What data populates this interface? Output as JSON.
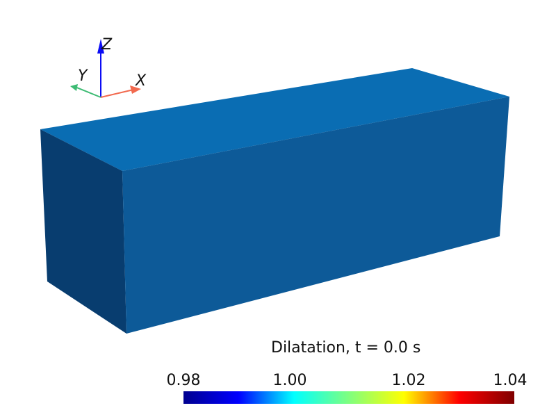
{
  "scene": {
    "background": "#ffffff",
    "box": {
      "top_face_color": "#0a6db3",
      "front_face_color": "#0d5a98",
      "side_face_color": "#083d6f"
    }
  },
  "orientation_axes": {
    "x": {
      "label": "X",
      "color": "#f26a4f"
    },
    "y": {
      "label": "Y",
      "color": "#3dbb73"
    },
    "z": {
      "label": "Z",
      "color": "#0b0cf5"
    }
  },
  "colorbar": {
    "title": "Dilatation, t = 0.0 s",
    "ticks": [
      "0.98",
      "1.00",
      "1.02",
      "1.04"
    ],
    "range": [
      0.98,
      1.04
    ],
    "colormap": "jet",
    "colors": [
      "#00008f",
      "#0000ff",
      "#00ffff",
      "#7fff7f",
      "#ffff00",
      "#ff0000",
      "#7f0000"
    ]
  }
}
